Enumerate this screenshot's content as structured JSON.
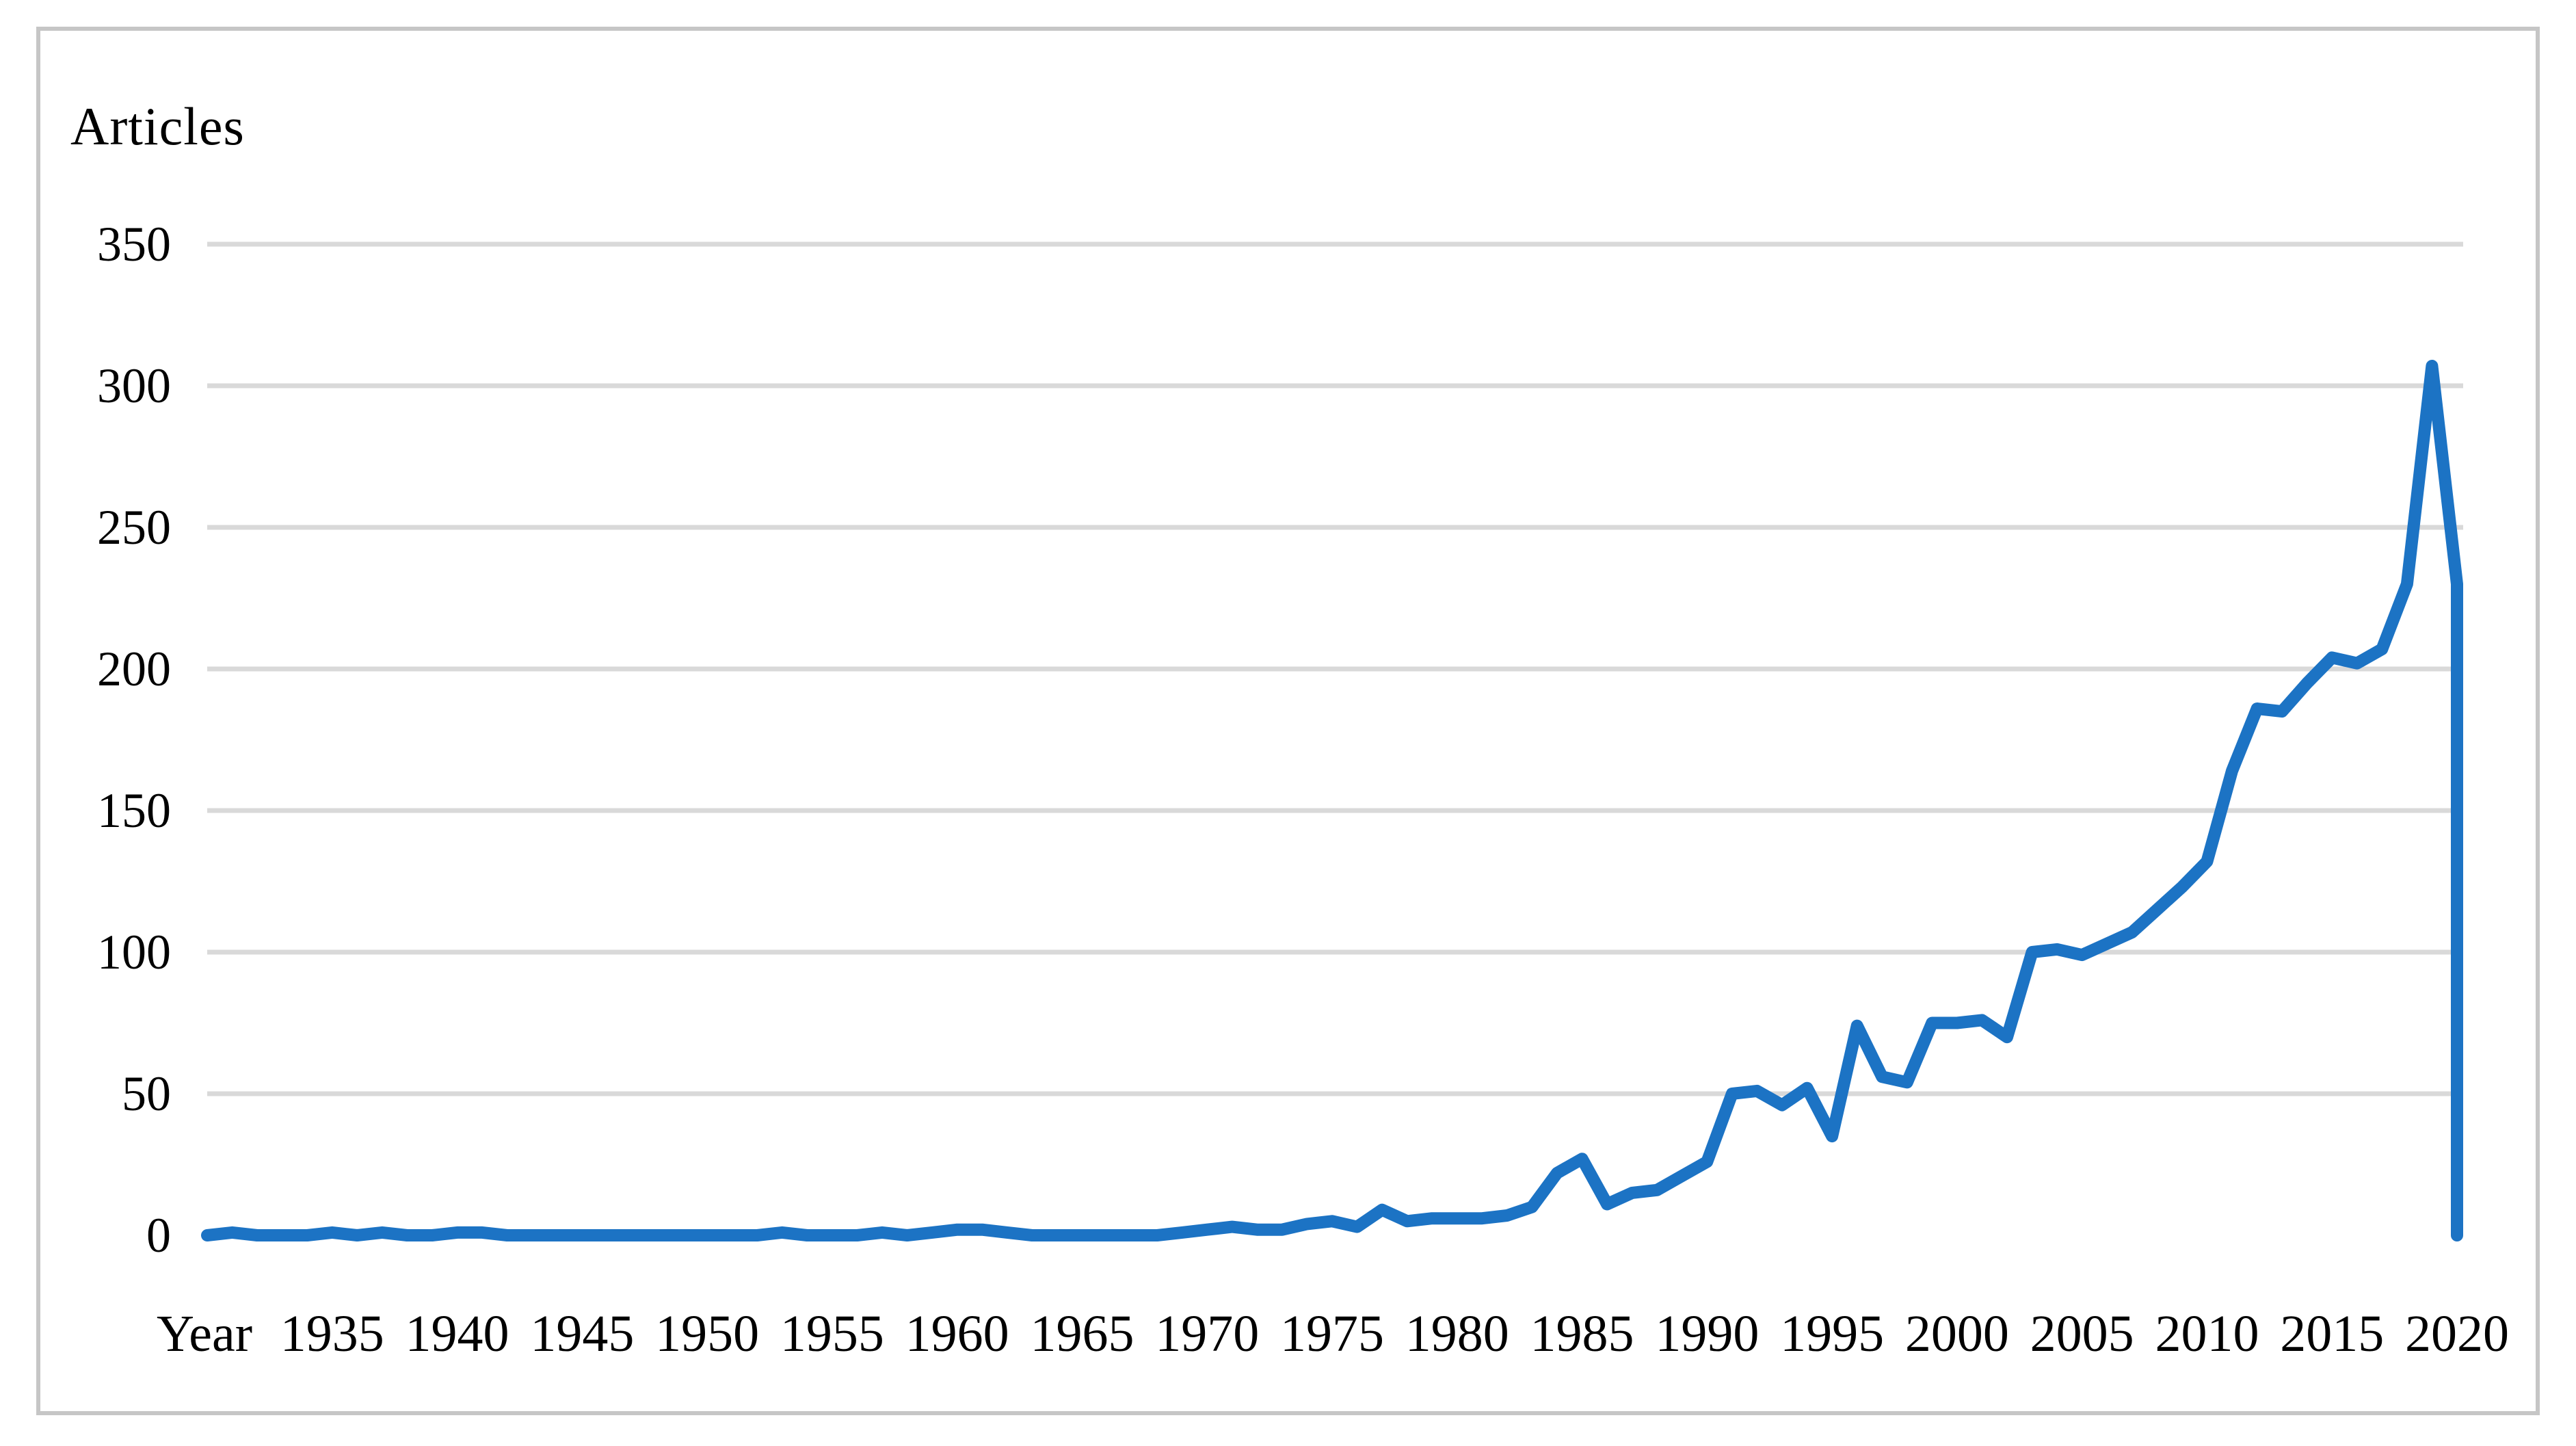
{
  "title": "Articles",
  "colors": {
    "line": "#1c73c4",
    "gridline": "#d9d9d9",
    "frame_border": "#c6c6c6",
    "text": "#000000",
    "background": "#ffffff"
  },
  "chart_data": {
    "type": "line",
    "title": "Articles",
    "xlabel": "Year",
    "ylabel": "Articles",
    "x_axis_first_label": "Year",
    "x_tick_labels": [
      "Year",
      "1935",
      "1940",
      "1945",
      "1950",
      "1955",
      "1960",
      "1965",
      "1970",
      "1975",
      "1980",
      "1985",
      "1990",
      "1995",
      "2000",
      "2005",
      "2010",
      "2015",
      "2020"
    ],
    "x_tick_years": [
      1930,
      1935,
      1940,
      1945,
      1950,
      1955,
      1960,
      1965,
      1970,
      1975,
      1980,
      1985,
      1990,
      1995,
      2000,
      2005,
      2010,
      2015,
      2020
    ],
    "y_tick_labels": [
      "0",
      "50",
      "100",
      "150",
      "200",
      "250",
      "300",
      "350"
    ],
    "y_ticks": [
      0,
      50,
      100,
      150,
      200,
      250,
      300,
      350
    ],
    "ylim": [
      0,
      350
    ],
    "xlim": [
      1930,
      2020
    ],
    "grid": "horizontal-only",
    "legend": "none",
    "years": [
      1930,
      1931,
      1932,
      1933,
      1934,
      1935,
      1936,
      1937,
      1938,
      1939,
      1940,
      1941,
      1942,
      1943,
      1944,
      1945,
      1946,
      1947,
      1948,
      1949,
      1950,
      1951,
      1952,
      1953,
      1954,
      1955,
      1956,
      1957,
      1958,
      1959,
      1960,
      1961,
      1962,
      1963,
      1964,
      1965,
      1966,
      1967,
      1968,
      1969,
      1970,
      1971,
      1972,
      1973,
      1974,
      1975,
      1976,
      1977,
      1978,
      1979,
      1980,
      1981,
      1982,
      1983,
      1984,
      1985,
      1986,
      1987,
      1988,
      1989,
      1990,
      1991,
      1992,
      1993,
      1994,
      1995,
      1996,
      1997,
      1998,
      1999,
      2000,
      2001,
      2002,
      2003,
      2004,
      2005,
      2006,
      2007,
      2008,
      2009,
      2010,
      2011,
      2012,
      2013,
      2014,
      2015,
      2016,
      2017,
      2018,
      2019,
      2020
    ],
    "values": [
      0,
      1,
      0,
      0,
      0,
      1,
      0,
      1,
      0,
      0,
      1,
      1,
      0,
      0,
      0,
      0,
      0,
      0,
      0,
      0,
      0,
      0,
      0,
      1,
      0,
      0,
      0,
      1,
      0,
      1,
      2,
      2,
      1,
      0,
      0,
      0,
      0,
      0,
      0,
      1,
      2,
      3,
      2,
      2,
      4,
      5,
      3,
      9,
      5,
      6,
      6,
      6,
      7,
      10,
      22,
      27,
      11,
      15,
      16,
      21,
      26,
      50,
      51,
      46,
      52,
      35,
      74,
      56,
      54,
      75,
      75,
      76,
      70,
      100,
      101,
      99,
      103,
      107,
      115,
      123,
      132,
      164,
      186,
      185,
      195,
      204,
      202,
      207,
      230,
      307,
      230
    ],
    "final_vertical_drop_to_zero_at_last_x": true,
    "peak": {
      "year": 2019,
      "value": 307
    }
  }
}
